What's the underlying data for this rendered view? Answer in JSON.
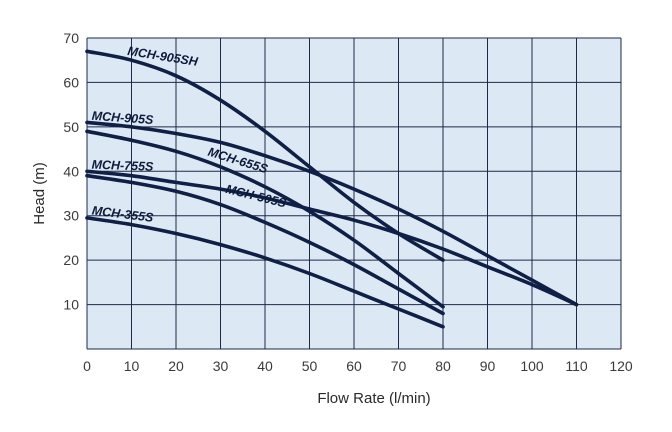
{
  "chart_data": {
    "type": "line",
    "xlabel": "Flow Rate (l/min)",
    "ylabel": "Head (m)",
    "xlim": [
      0,
      120
    ],
    "ylim": [
      0,
      70
    ],
    "x_ticks": [
      "0",
      "10",
      "20",
      "30",
      "40",
      "50",
      "60",
      "70",
      "80",
      "90",
      "100",
      "110",
      "120"
    ],
    "y_ticks": [
      "10",
      "20",
      "30",
      "40",
      "50",
      "60",
      "70"
    ],
    "grid": true,
    "background_color": "#dde8f5",
    "line_color": "#0f1f45",
    "series": [
      {
        "name": "MCH-905SH",
        "x": [
          0,
          10,
          20,
          30,
          40,
          50,
          60,
          70,
          80
        ],
        "y": [
          67,
          65,
          61.5,
          56,
          49,
          41,
          33,
          26,
          20
        ]
      },
      {
        "name": "MCH-905S",
        "x": [
          0,
          10,
          20,
          30,
          40,
          50,
          60,
          70,
          80,
          90,
          100,
          110
        ],
        "y": [
          51,
          50,
          48.5,
          46.5,
          43.5,
          40,
          36,
          31.5,
          26.5,
          21,
          15.5,
          10
        ]
      },
      {
        "name": "MCH-655S",
        "x": [
          0,
          10,
          20,
          30,
          40,
          50,
          60,
          70,
          80
        ],
        "y": [
          49,
          47,
          44.5,
          41,
          36.5,
          31,
          24.5,
          17,
          9.5
        ]
      },
      {
        "name": "MCH-755S",
        "x": [
          0,
          10,
          20,
          30,
          40,
          50,
          60,
          70,
          80,
          90,
          100,
          110
        ],
        "y": [
          40,
          39,
          37.5,
          36,
          34,
          31.5,
          29,
          26,
          22.5,
          18.5,
          14.5,
          10
        ]
      },
      {
        "name": "MCH-505S",
        "x": [
          0,
          10,
          20,
          30,
          40,
          50,
          60,
          70,
          80
        ],
        "y": [
          39,
          37.5,
          35.5,
          32.5,
          28.5,
          24,
          19,
          13.5,
          8
        ]
      },
      {
        "name": "MCH-355S",
        "x": [
          0,
          10,
          20,
          30,
          40,
          50,
          60,
          70,
          80
        ],
        "y": [
          29.5,
          28,
          26,
          23.5,
          20.5,
          17,
          13,
          9,
          5
        ]
      }
    ]
  }
}
